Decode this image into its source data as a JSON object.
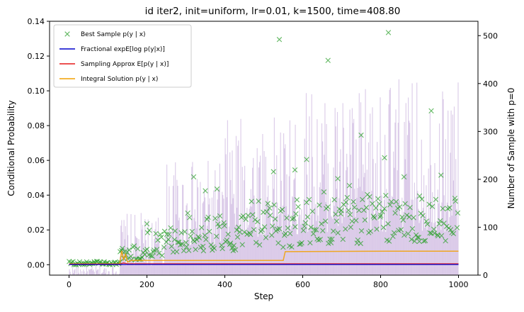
{
  "chart_data": {
    "type": "line",
    "title": "id iter2, init=uniform, lr=0.01, k=1500, time=408.80",
    "xlabel": "Step",
    "ylabel": "Conditional Probability",
    "ylabel_right": "Number of Sample with p=0",
    "xlim": [
      -50,
      1050
    ],
    "ylim": [
      -0.006,
      0.14
    ],
    "ylim_right": [
      0,
      530
    ],
    "xticks": [
      0,
      200,
      400,
      600,
      800,
      1000
    ],
    "yticks": [
      0.0,
      0.02,
      0.04,
      0.06,
      0.08,
      0.1,
      0.12,
      0.14
    ],
    "ytick_labels": [
      "0.00",
      "0.02",
      "0.04",
      "0.06",
      "0.08",
      "0.10",
      "0.12",
      "0.14"
    ],
    "yticks_right": [
      0,
      100,
      200,
      300,
      400,
      500
    ],
    "colors": {
      "best": "#2ca02c",
      "fractional": "#0000cc",
      "sampling": "#e61919",
      "integral": "#f2a000",
      "bars": "#9467bd",
      "right_label": "#800080"
    },
    "legend_position": "upper-left",
    "legend": [
      {
        "label": "Best Sample p(y | x)",
        "marker": "x",
        "color": "#2ca02c"
      },
      {
        "label": "Fractional expE[log p(y|x)]",
        "marker": "line",
        "color": "#0000cc"
      },
      {
        "label": "Sampling Approx E[p(y | x)]",
        "marker": "line",
        "color": "#e61919"
      },
      {
        "label": "Integral Solution p(y | x)",
        "marker": "line",
        "color": "#f2a000"
      }
    ],
    "series": [
      {
        "name": "Integral Solution p(y | x)",
        "kind": "step-line",
        "x": [
          0,
          130,
          135,
          140,
          145,
          150,
          160,
          550,
          555,
          820,
          1000
        ],
        "y": [
          0.0005,
          0.0005,
          0.008,
          0.003,
          0.006,
          0.0015,
          0.0025,
          0.0025,
          0.0075,
          0.0078,
          0.0078
        ]
      },
      {
        "name": "Sampling Approx E[p(y | x)]",
        "kind": "line",
        "x": [
          0,
          130,
          140,
          150,
          1000
        ],
        "y": [
          0.0003,
          0.0003,
          0.001,
          0.0005,
          0.0005
        ]
      },
      {
        "name": "Fractional expE[log p(y|x)]",
        "kind": "line",
        "x": [
          0,
          1000
        ],
        "y": [
          0.0001,
          0.0001
        ]
      },
      {
        "name": "Best Sample p(y | x)",
        "kind": "scatter",
        "segments": [
          {
            "x_start": 0,
            "x_end": 130,
            "y_min": 0.0,
            "y_max": 0.002
          },
          {
            "x_start": 130,
            "x_end": 200,
            "y_min": 0.002,
            "y_max": 0.012
          },
          {
            "x_start": 200,
            "x_end": 300,
            "y_min": 0.004,
            "y_max": 0.022
          },
          {
            "x_start": 300,
            "x_end": 450,
            "y_min": 0.008,
            "y_max": 0.03
          },
          {
            "x_start": 450,
            "x_end": 600,
            "y_min": 0.01,
            "y_max": 0.038
          },
          {
            "x_start": 600,
            "x_end": 800,
            "y_min": 0.012,
            "y_max": 0.042
          },
          {
            "x_start": 800,
            "x_end": 1000,
            "y_min": 0.013,
            "y_max": 0.04
          }
        ],
        "outliers": [
          {
            "x": 540,
            "y": 0.1295
          },
          {
            "x": 665,
            "y": 0.1175
          },
          {
            "x": 820,
            "y": 0.1335
          },
          {
            "x": 930,
            "y": 0.0885
          },
          {
            "x": 750,
            "y": 0.0745
          },
          {
            "x": 810,
            "y": 0.0615
          },
          {
            "x": 610,
            "y": 0.0605
          },
          {
            "x": 955,
            "y": 0.0515
          },
          {
            "x": 320,
            "y": 0.0505
          },
          {
            "x": 525,
            "y": 0.0535
          },
          {
            "x": 580,
            "y": 0.0545
          },
          {
            "x": 690,
            "y": 0.0495
          },
          {
            "x": 380,
            "y": 0.0435
          },
          {
            "x": 200,
            "y": 0.0235
          },
          {
            "x": 350,
            "y": 0.0425
          },
          {
            "x": 720,
            "y": 0.0455
          },
          {
            "x": 860,
            "y": 0.0505
          },
          {
            "x": 900,
            "y": 0.0395
          }
        ]
      },
      {
        "name": "Number of Sample with p=0",
        "kind": "bar",
        "axis": "right",
        "segments": [
          {
            "x_start": 0,
            "x_end": 130,
            "min": 0,
            "max": 20
          },
          {
            "x_start": 130,
            "x_end": 250,
            "min": 20,
            "max": 130
          },
          {
            "x_start": 250,
            "x_end": 400,
            "min": 60,
            "max": 240
          },
          {
            "x_start": 400,
            "x_end": 600,
            "min": 80,
            "max": 330
          },
          {
            "x_start": 600,
            "x_end": 800,
            "min": 90,
            "max": 390
          },
          {
            "x_start": 800,
            "x_end": 1000,
            "min": 90,
            "max": 410
          }
        ]
      }
    ]
  }
}
